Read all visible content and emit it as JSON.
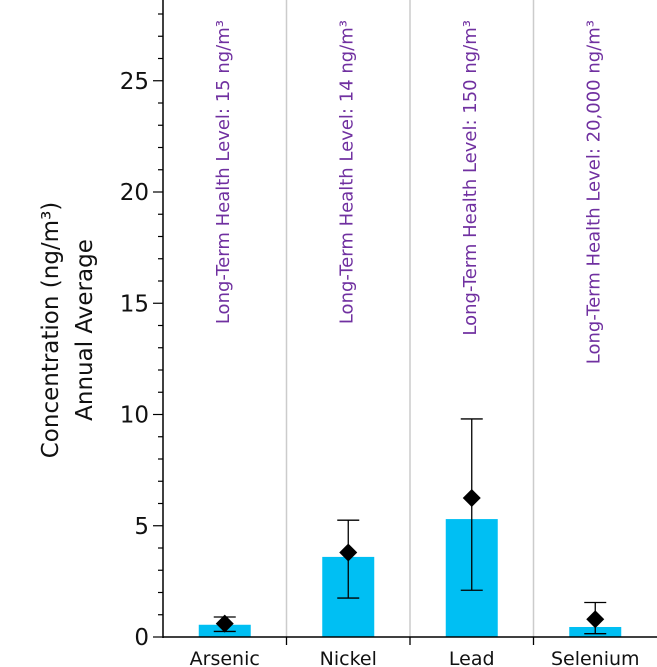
{
  "chart_data": {
    "type": "bar",
    "title": "",
    "xlabel": "",
    "ylabel_line1": "Annual Average",
    "ylabel_line2": "Concentration (ng/m³)",
    "ylim": [
      0,
      28
    ],
    "yticks": [
      0,
      5,
      10,
      15,
      20,
      25
    ],
    "y_tick_labels": [
      "0",
      "5",
      "10",
      "15",
      "20",
      "25"
    ],
    "y_minor_step": 1,
    "grid": "vertical separators between categories",
    "categories": [
      "Arsenic",
      "Nickel",
      "Lead",
      "Selenium"
    ],
    "values": [
      0.55,
      3.6,
      5.3,
      0.45
    ],
    "mean_markers": [
      0.6,
      3.8,
      6.25,
      0.8
    ],
    "error_low": [
      0.25,
      1.75,
      2.1,
      0.15
    ],
    "error_high": [
      0.9,
      5.25,
      9.8,
      1.55
    ],
    "annotations": [
      "Long-Term Health Level: 15 ng/m³",
      "Long-Term Health Level: 14 ng/m³",
      "Long-Term Health Level: 150 ng/m³",
      "Long-Term Health Level: 20,000 ng/m³"
    ],
    "colors": {
      "bar": "#00bff3",
      "annotation": "#7030a0",
      "separator": "#cccccc",
      "marker": "#000000",
      "axis": "#000000"
    }
  }
}
